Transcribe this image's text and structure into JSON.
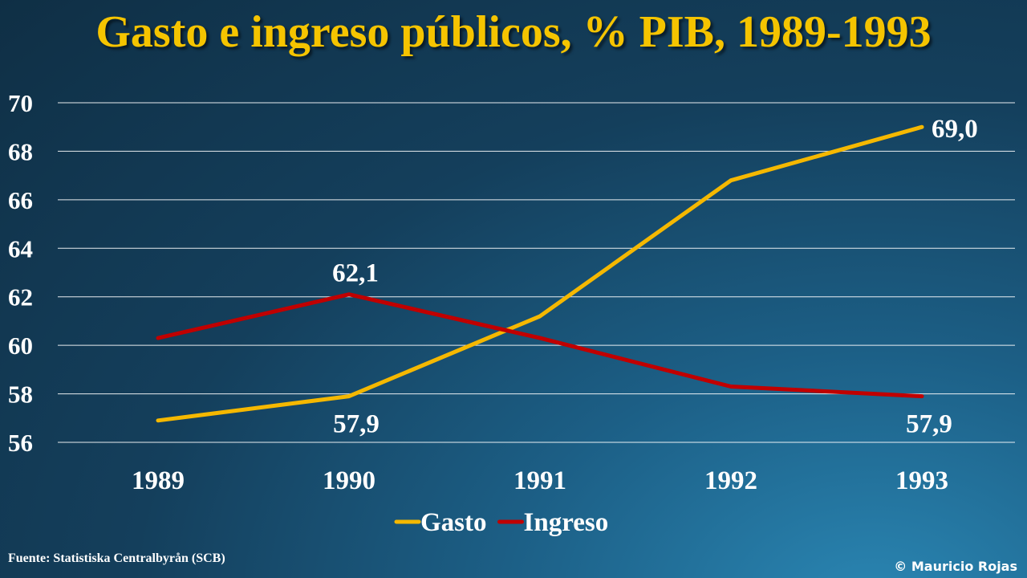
{
  "title": "Gasto e ingreso públicos, % PIB, 1989-1993",
  "source": "Fuente: Statistiska Centralbyrån (SCB)",
  "copyright": "© Mauricio Rojas",
  "chart_data": {
    "type": "line",
    "title": "Gasto e ingreso públicos, % PIB, 1989-1993",
    "xlabel": "",
    "ylabel": "",
    "categories": [
      "1989",
      "1990",
      "1991",
      "1992",
      "1993"
    ],
    "ylim": [
      56,
      70
    ],
    "yticks": [
      56,
      58,
      60,
      62,
      64,
      66,
      68,
      70
    ],
    "grid": true,
    "legend": "bottom",
    "series": [
      {
        "name": "Gasto",
        "color": "#f5b800",
        "values": [
          56.9,
          57.9,
          61.2,
          66.8,
          69.0
        ]
      },
      {
        "name": "Ingreso",
        "color": "#c00000",
        "values": [
          60.3,
          62.1,
          60.3,
          58.3,
          57.9
        ]
      }
    ],
    "annotations": [
      {
        "series": "Ingreso",
        "index": 1,
        "text": "62,1",
        "position": "above"
      },
      {
        "series": "Gasto",
        "index": 1,
        "text": "57,9",
        "position": "below"
      },
      {
        "series": "Gasto",
        "index": 4,
        "text": "69,0",
        "position": "right"
      },
      {
        "series": "Ingreso",
        "index": 4,
        "text": "57,9",
        "position": "below"
      }
    ]
  }
}
